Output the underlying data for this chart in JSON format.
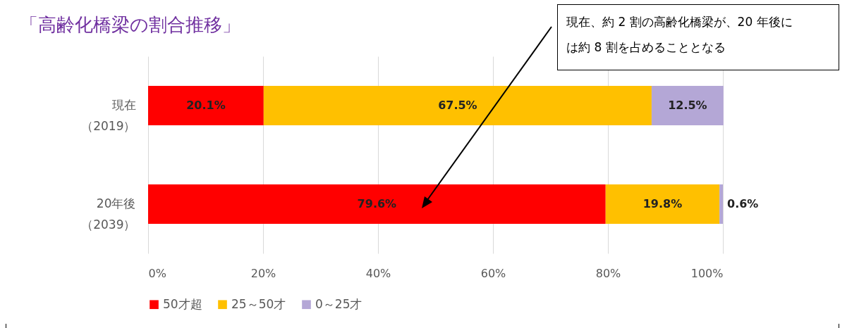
{
  "chart_data": {
    "type": "bar",
    "orientation": "horizontal",
    "stacked": true,
    "title": "「高齢化橋梁の割合推移」",
    "annotations": [
      "現在、約 2 割の高齢化橋梁が、20 年後には約 8 割を占めることとなる"
    ],
    "categories": [
      "現在（2019）",
      "20年後（2039）"
    ],
    "series": [
      {
        "name": "50才超",
        "color": "#ff0000",
        "values": [
          20.1,
          79.6
        ],
        "value_labels": [
          "20.1%",
          "79.6%"
        ]
      },
      {
        "name": "25～50才",
        "color": "#ffc000",
        "values": [
          67.5,
          19.8
        ],
        "value_labels": [
          "67.5%",
          "19.8%"
        ]
      },
      {
        "name": "0～25才",
        "color": "#b4a7d6",
        "values": [
          12.5,
          0.6
        ],
        "value_labels": [
          "12.5%",
          "0.6%"
        ]
      }
    ],
    "xlim": [
      0,
      100
    ],
    "xticks": [
      {
        "value": 0,
        "label": "0%"
      },
      {
        "value": 20,
        "label": "20%"
      },
      {
        "value": 40,
        "label": "40%"
      },
      {
        "value": 60,
        "label": "60%"
      },
      {
        "value": 80,
        "label": "80%"
      },
      {
        "value": 100,
        "label": "100%"
      }
    ],
    "grid": "x",
    "legend": "bottom"
  }
}
